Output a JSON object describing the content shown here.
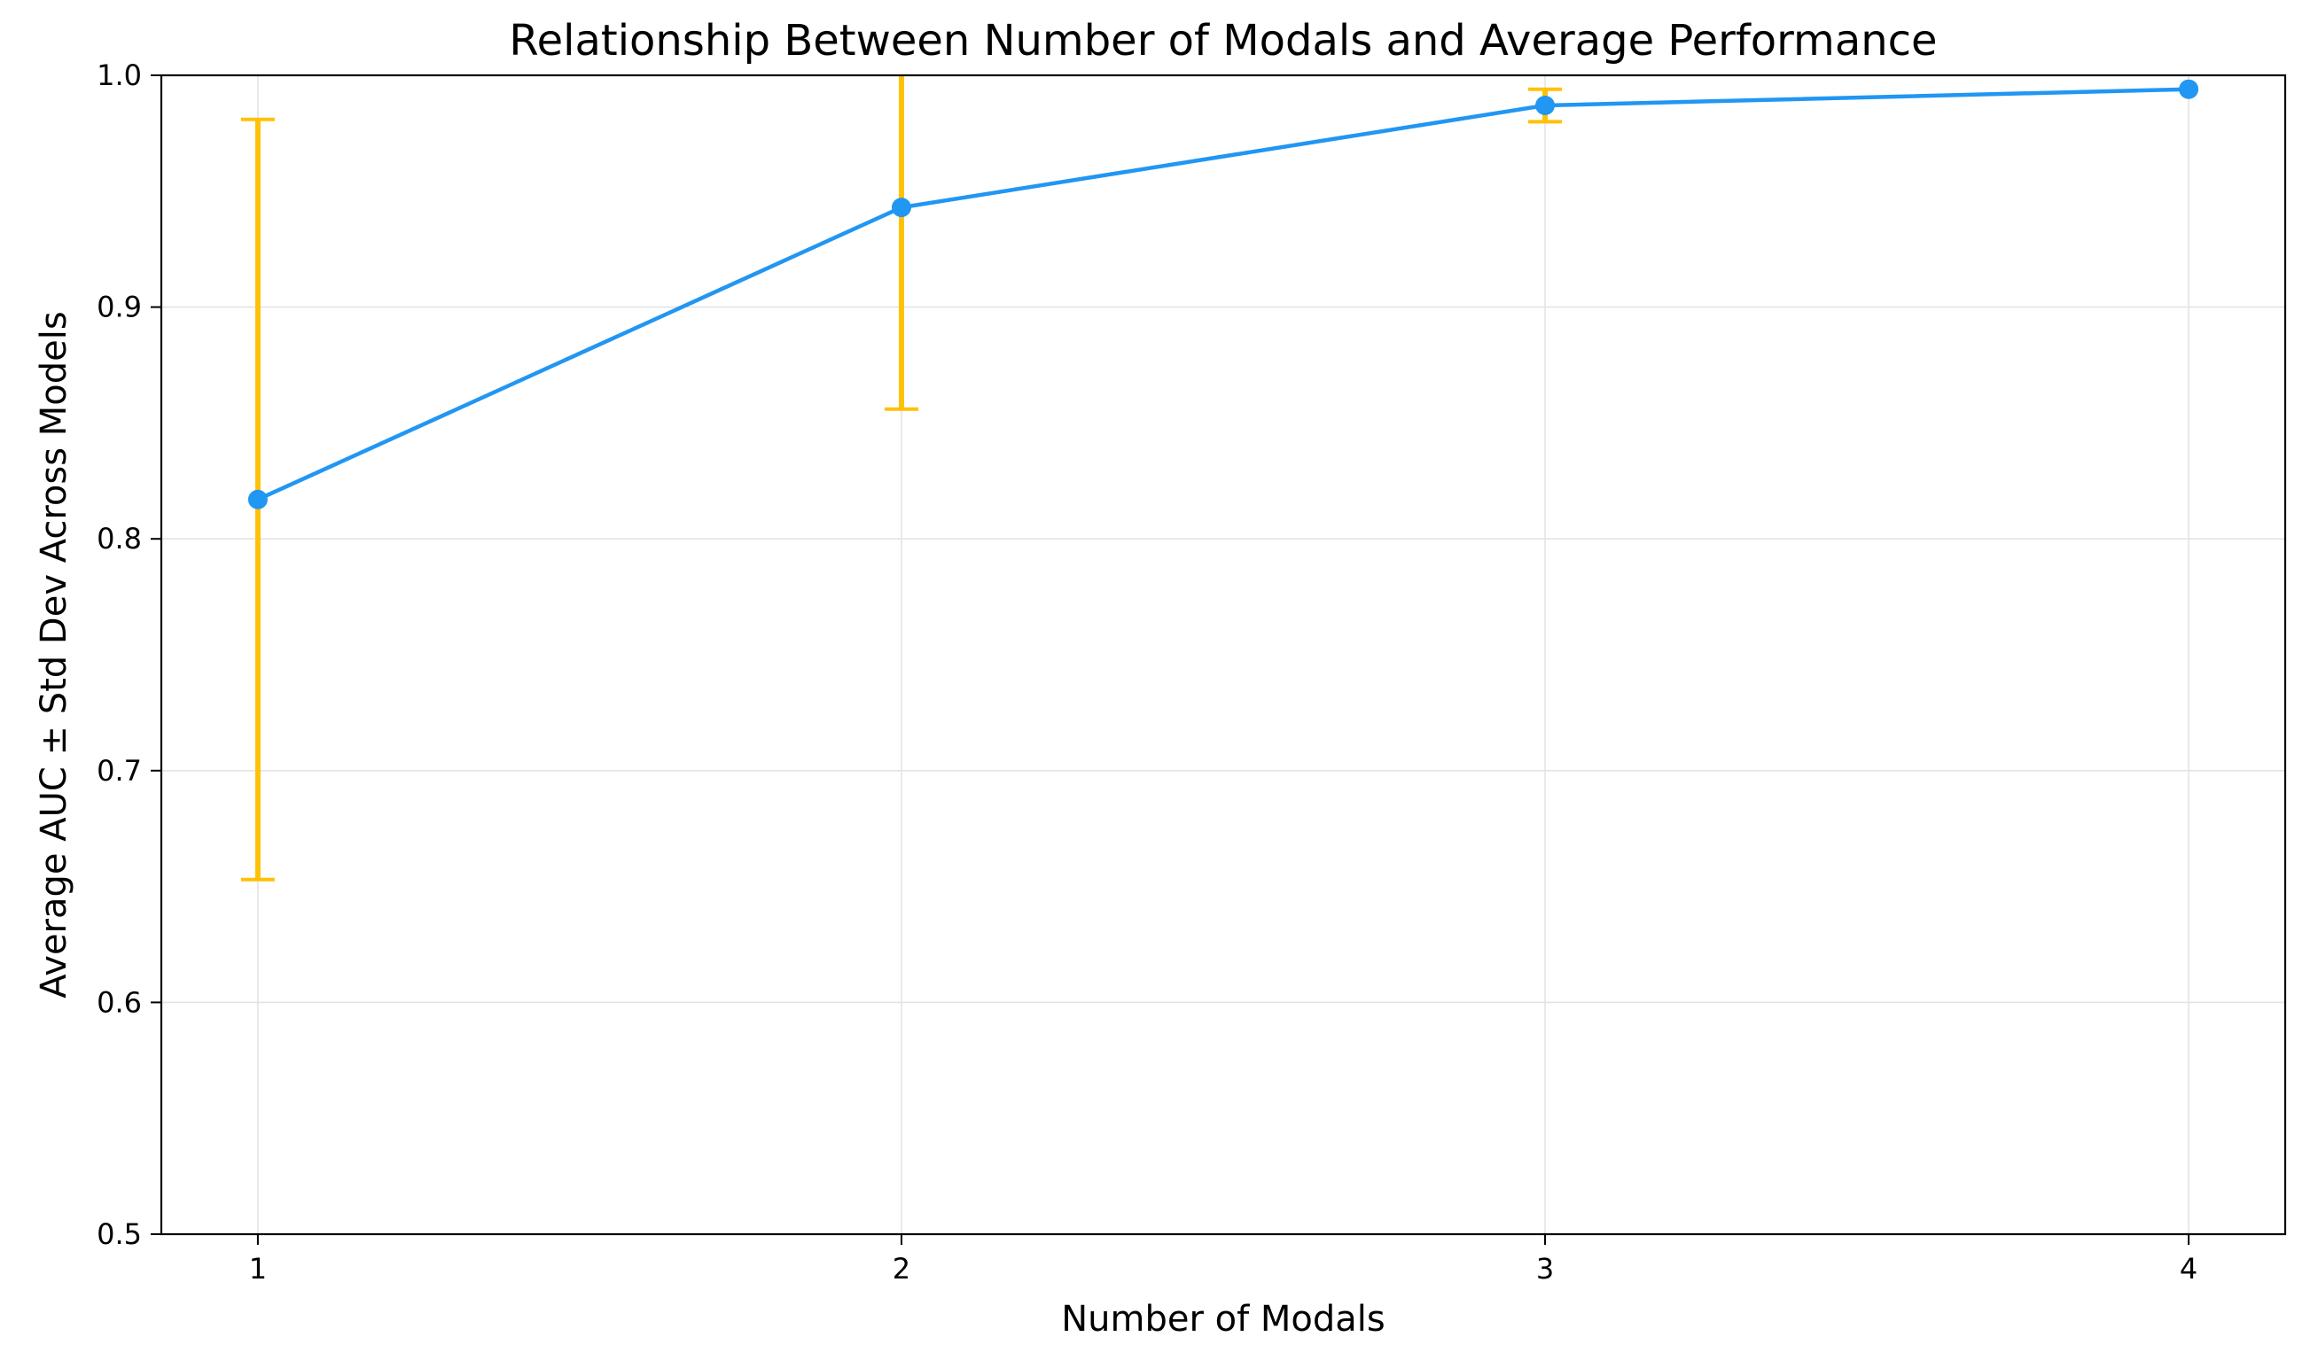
{
  "chart_data": {
    "type": "line",
    "title": "Relationship Between Number of Modals and Average Performance",
    "xlabel": "Number of Modals",
    "ylabel": "Average AUC ± Std Dev Across Models",
    "x": [
      1,
      2,
      3,
      4
    ],
    "x_tick_labels": [
      "1",
      "2",
      "3",
      "4"
    ],
    "xlim": [
      0.85,
      4.15
    ],
    "ylim": [
      0.5,
      1.0
    ],
    "y_ticks": [
      0.5,
      0.6,
      0.7,
      0.8,
      0.9,
      1.0
    ],
    "y_tick_labels": [
      "0.5",
      "0.6",
      "0.7",
      "0.8",
      "0.9",
      "1.0"
    ],
    "grid": true,
    "legend": "none",
    "series": [
      {
        "values": [
          0.817,
          0.943,
          0.987,
          0.994
        ],
        "std": [
          0.164,
          0.087,
          0.007,
          0.0
        ],
        "line_color": "#2196f3",
        "errorbar_color": "#ffc107",
        "marker": "circle"
      }
    ]
  }
}
